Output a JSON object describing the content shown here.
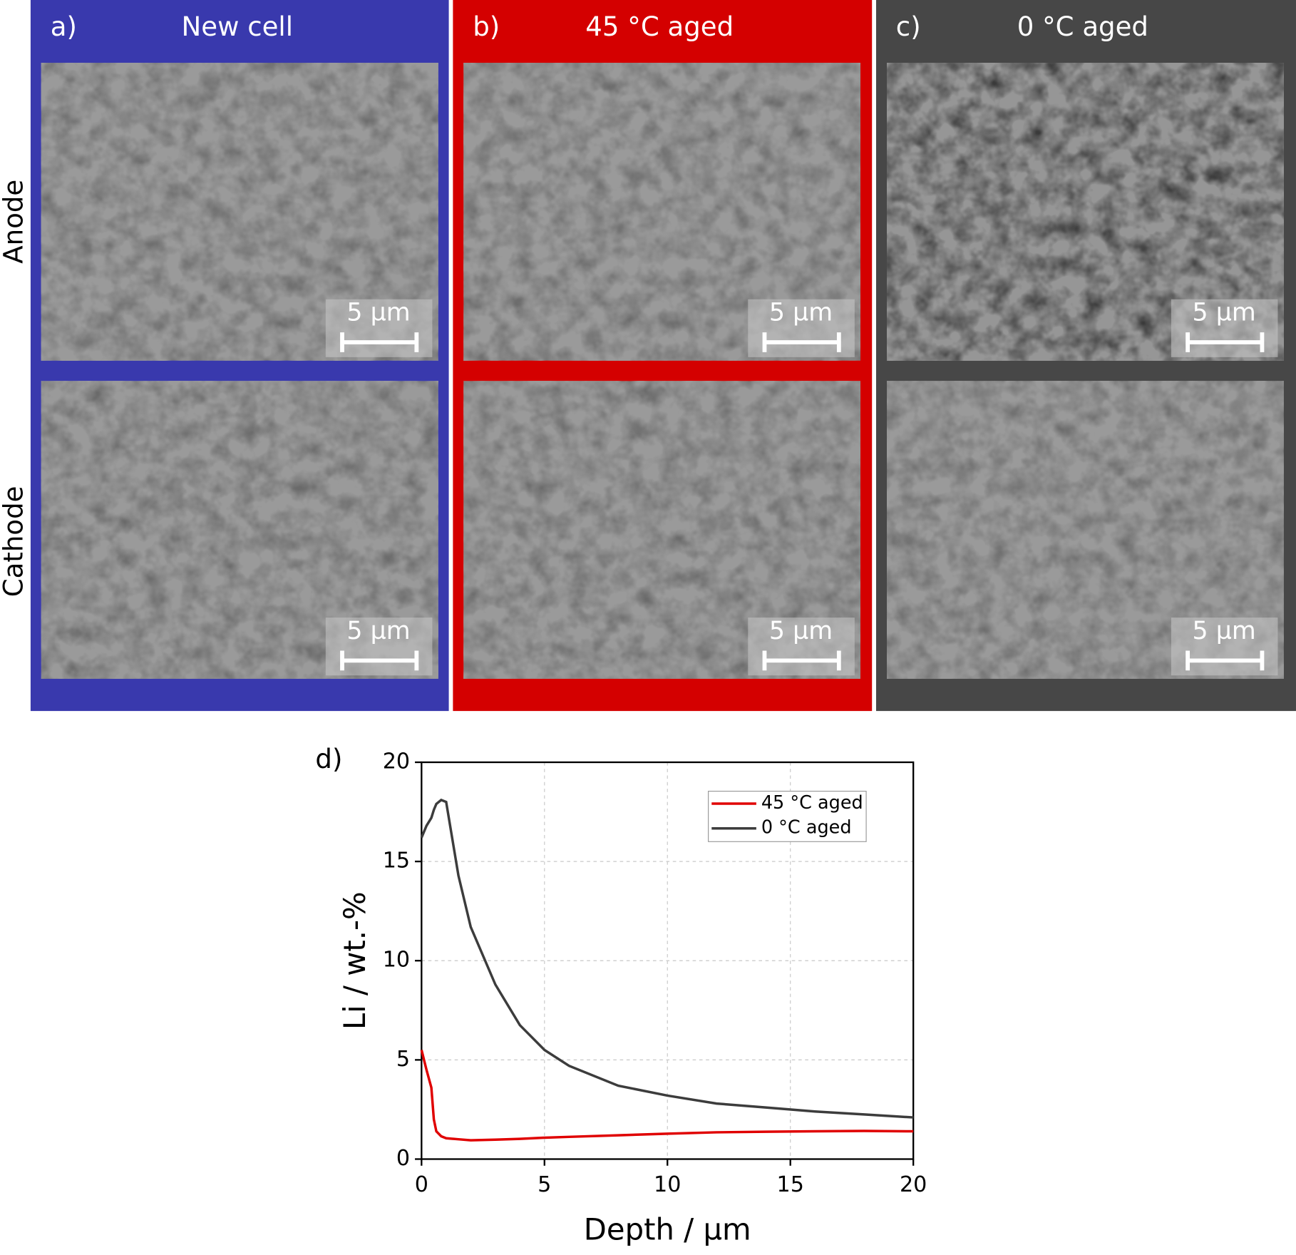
{
  "panels": [
    {
      "label": "a)",
      "title": "New cell",
      "color": "#3939ad"
    },
    {
      "label": "b)",
      "title": "45 °C aged",
      "color": "#d40000"
    },
    {
      "label": "c)",
      "title": "0 °C aged",
      "color": "#474747"
    }
  ],
  "row_labels": [
    "Anode",
    "Cathode"
  ],
  "scale_bar": "5 µm",
  "chart_data": {
    "type": "line",
    "panel_label": "d)",
    "x_label": "Depth / µm",
    "y_label": "Li / wt.-%",
    "x": [
      0,
      0.2,
      0.4,
      0.5,
      0.6,
      0.8,
      1,
      1.5,
      2,
      3,
      4,
      5,
      6,
      8,
      10,
      12,
      14,
      16,
      18,
      20
    ],
    "series": [
      {
        "name": "45 °C aged",
        "color": "#e00000",
        "values": [
          5.5,
          4.5,
          3.6,
          2.0,
          1.4,
          1.15,
          1.05,
          1.0,
          0.95,
          0.98,
          1.02,
          1.08,
          1.12,
          1.2,
          1.28,
          1.35,
          1.38,
          1.4,
          1.42,
          1.4
        ]
      },
      {
        "name": "0 °C aged",
        "color": "#3c3c3c",
        "values": [
          16.2,
          16.8,
          17.2,
          17.6,
          17.9,
          18.1,
          18.0,
          14.3,
          11.7,
          8.8,
          6.75,
          5.5,
          4.7,
          3.7,
          3.2,
          2.8,
          2.6,
          2.4,
          2.25,
          2.1
        ]
      }
    ],
    "xlim": [
      0,
      20
    ],
    "ylim": [
      0,
      20
    ],
    "xticks": [
      0,
      5,
      10,
      15,
      20
    ],
    "yticks": [
      0,
      5,
      10,
      15,
      20
    ],
    "grid": true,
    "legend": "upper-right"
  }
}
